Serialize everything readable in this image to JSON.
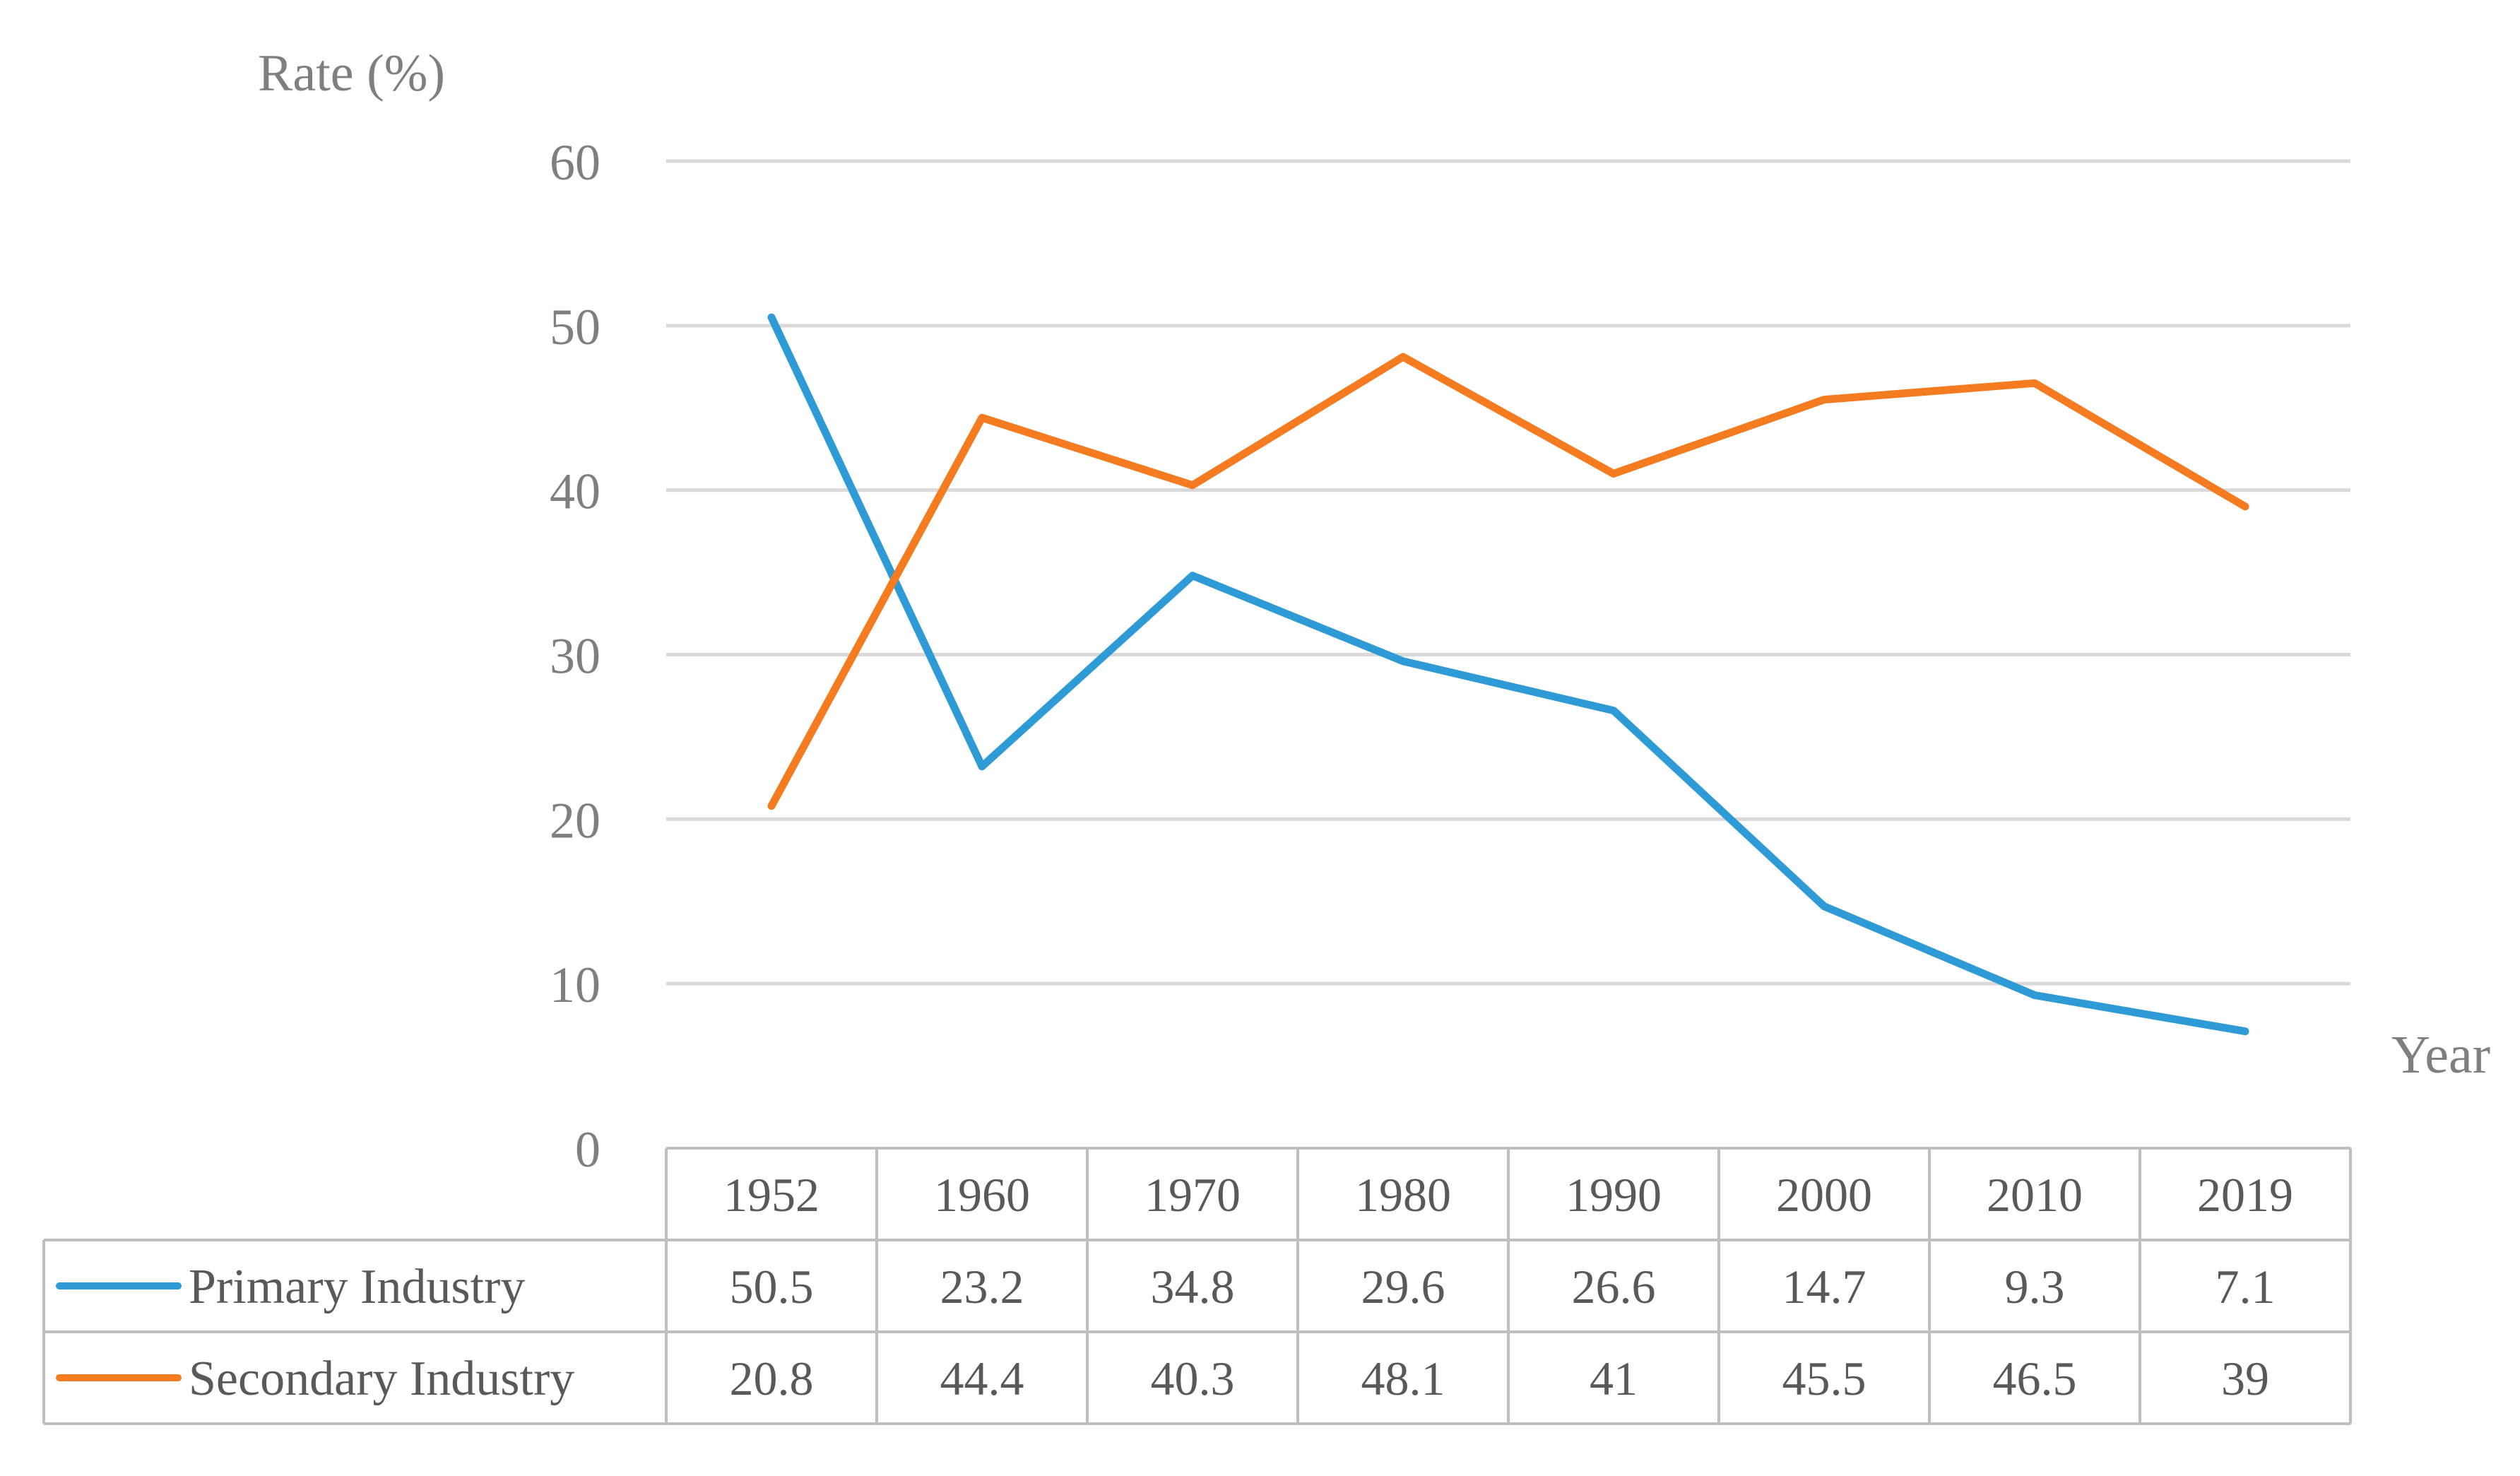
{
  "chart_data": {
    "type": "line",
    "title": "",
    "ylabel": "Rate (%)",
    "xlabel": "Year",
    "ylim": [
      0,
      60
    ],
    "yticks": [
      0,
      10,
      20,
      30,
      40,
      50,
      60
    ],
    "grid": true,
    "legend": "data-table-left",
    "categories": [
      "1952",
      "1960",
      "1970",
      "1980",
      "1990",
      "2000",
      "2010",
      "2019"
    ],
    "series": [
      {
        "name": "Primary Industry",
        "color": "#2E9BD6",
        "values": [
          50.5,
          23.2,
          34.8,
          29.6,
          26.6,
          14.7,
          9.3,
          7.1
        ],
        "labels": [
          "50.5",
          "23.2",
          "34.8",
          "29.6",
          "26.6",
          "14.7",
          "9.3",
          "7.1"
        ]
      },
      {
        "name": "Secondary Industry",
        "color": "#F47B20",
        "values": [
          20.8,
          44.4,
          40.3,
          48.1,
          41,
          45.5,
          46.5,
          39
        ],
        "labels": [
          "20.8",
          "44.4",
          "40.3",
          "48.1",
          "41",
          "45.5",
          "46.5",
          "39"
        ]
      }
    ]
  }
}
